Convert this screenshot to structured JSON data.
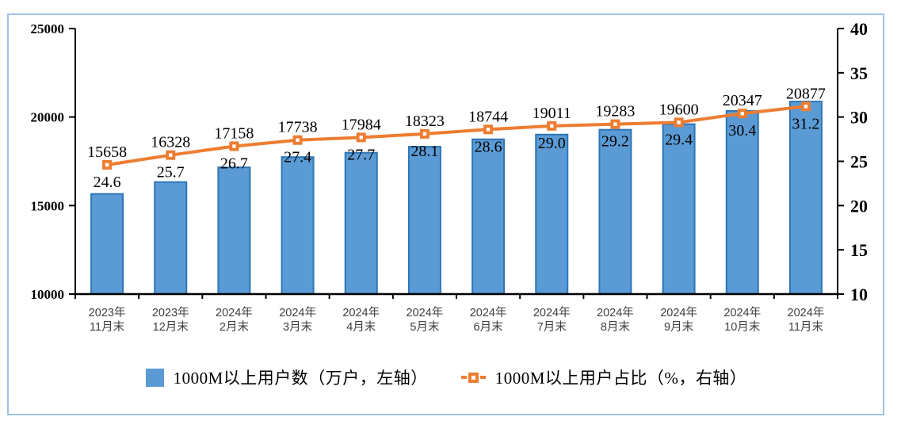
{
  "panel": {
    "background": "#ffffff",
    "frame_border_color": "#9DC3E6"
  },
  "chart_data": {
    "type": "combo",
    "title": "",
    "grid": false,
    "legend_position": "bottom",
    "categories": [
      "2023年11月末",
      "2023年12月末",
      "2024年2月末",
      "2024年3月末",
      "2024年4月末",
      "2024年5月末",
      "2024年6月末",
      "2024年7月末",
      "2024年8月末",
      "2024年9月末",
      "2024年10月末",
      "2024年11月末"
    ],
    "categories_two_line": [
      [
        "2023年",
        "11月末"
      ],
      [
        "2023年",
        "12月末"
      ],
      [
        "2024年",
        "2月末"
      ],
      [
        "2024年",
        "3月末"
      ],
      [
        "2024年",
        "4月末"
      ],
      [
        "2024年",
        "5月末"
      ],
      [
        "2024年",
        "6月末"
      ],
      [
        "2024年",
        "7月末"
      ],
      [
        "2024年",
        "8月末"
      ],
      [
        "2024年",
        "9月末"
      ],
      [
        "2024年",
        "10月末"
      ],
      [
        "2024年",
        "11月末"
      ]
    ],
    "series": [
      {
        "name": "1000M以上用户数（万户，左轴）",
        "type": "bar",
        "axis": "left",
        "color": "#5B9BD5",
        "border_color": "#2E75B6",
        "values": [
          15658,
          16328,
          17158,
          17738,
          17984,
          18323,
          18744,
          19011,
          19283,
          19600,
          20347,
          20877
        ],
        "labels": [
          "15658",
          "16328",
          "17158",
          "17738",
          "17984",
          "18323",
          "18744",
          "19011",
          "19283",
          "19600",
          "20347",
          "20877"
        ]
      },
      {
        "name": "1000M以上用户占比（%，右轴）",
        "type": "line",
        "axis": "right",
        "color": "#ED7D31",
        "marker": "square-open",
        "values": [
          24.6,
          25.7,
          26.7,
          27.4,
          27.7,
          28.1,
          28.6,
          29.0,
          29.2,
          29.4,
          30.4,
          31.2
        ],
        "labels": [
          "24.6",
          "25.7",
          "26.7",
          "27.4",
          "27.7",
          "28.1",
          "28.6",
          "29.0",
          "29.2",
          "29.4",
          "30.4",
          "31.2"
        ]
      }
    ],
    "left_axis": {
      "min": 10000,
      "max": 25000,
      "tick_step": 5000,
      "tick_labels": [
        "10000",
        "15000",
        "20000",
        "25000"
      ]
    },
    "right_axis": {
      "min": 10,
      "max": 40,
      "tick_step": 5,
      "tick_labels": [
        "10",
        "15",
        "20",
        "25",
        "30",
        "35",
        "40"
      ]
    },
    "axis_color": "#000000",
    "label_color": "#000000",
    "x_label_color": "#3f3f3f"
  }
}
